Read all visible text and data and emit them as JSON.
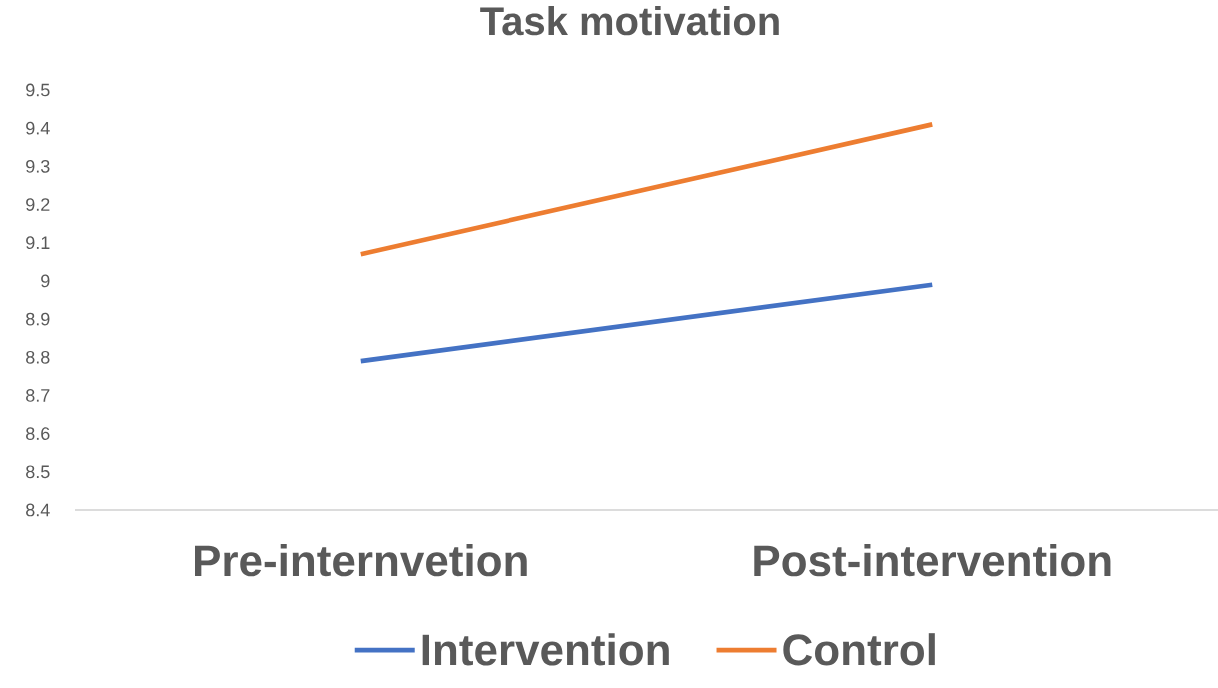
{
  "chart_data": {
    "type": "line",
    "title": "Task motivation",
    "categories": [
      "Pre-internvetion",
      "Post-intervention"
    ],
    "series": [
      {
        "name": "Intervention",
        "color": "#4472c4",
        "values": [
          8.79,
          8.99
        ]
      },
      {
        "name": "Control",
        "color": "#ed7d31",
        "values": [
          9.07,
          9.41
        ]
      }
    ],
    "ylim": [
      8.4,
      9.5
    ],
    "yticks": [
      8.4,
      8.5,
      8.6,
      8.7,
      8.8,
      8.9,
      9,
      9.1,
      9.2,
      9.3,
      9.4,
      9.5
    ],
    "grid": false,
    "legend": "bottom",
    "marker": "none",
    "line_style": "solid"
  }
}
